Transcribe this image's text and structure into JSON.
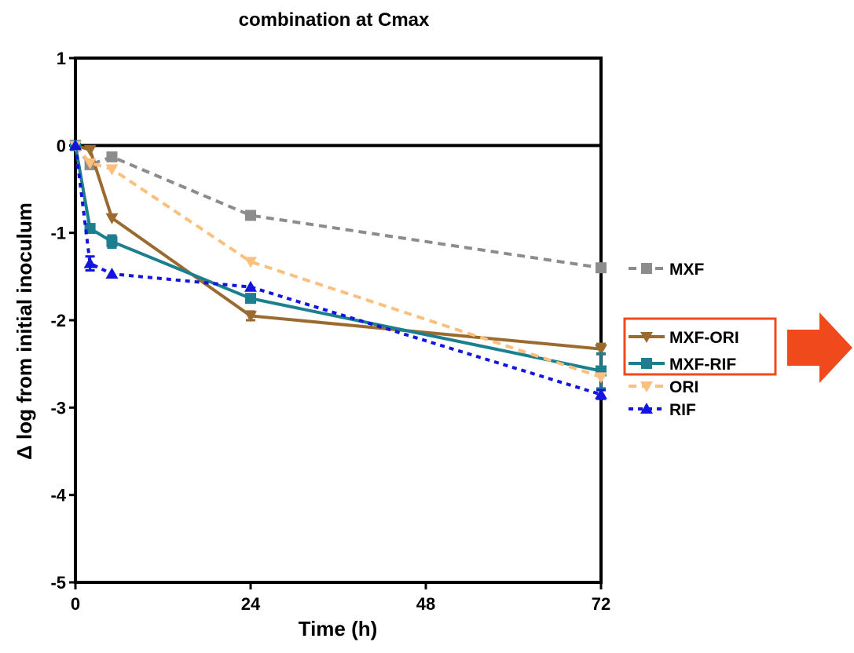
{
  "chart_data": {
    "type": "line",
    "title": "combination at Cmax",
    "xlabel": "Time (h)",
    "ylabel": "Δ log from initial inoculum",
    "xlim": [
      0,
      72
    ],
    "ylim": [
      -5,
      1
    ],
    "xticks": [
      0,
      24,
      48,
      72
    ],
    "xtick_labels": [
      "0",
      "24",
      "48",
      "72"
    ],
    "yticks": [
      1,
      0,
      -1,
      -2,
      -3,
      -4,
      -5
    ],
    "ytick_labels": [
      "1",
      "0",
      "-1",
      "-2",
      "-3",
      "-4",
      "-5"
    ],
    "reference_line_y": 0,
    "grid": false,
    "legend_position": "right",
    "series": [
      {
        "name": "MXF",
        "color": "#8c8c8c",
        "dash": "dashed",
        "marker": "square",
        "x": [
          0,
          2,
          5,
          24,
          72
        ],
        "y": [
          0,
          -0.22,
          -0.13,
          -0.8,
          -1.4
        ],
        "err": [
          0,
          0,
          0,
          0,
          0
        ]
      },
      {
        "name": "MXF-ORI",
        "color": "#9b6a2f",
        "dash": "solid",
        "marker": "triangle-down",
        "x": [
          0,
          2,
          5,
          24,
          72
        ],
        "y": [
          0,
          -0.05,
          -0.83,
          -1.95,
          -2.33
        ],
        "err": [
          0,
          0,
          0,
          0.05,
          0.06
        ]
      },
      {
        "name": "MXF-RIF",
        "color": "#1b7f8f",
        "dash": "solid",
        "marker": "square",
        "x": [
          0,
          2,
          5,
          24,
          72
        ],
        "y": [
          0,
          -0.95,
          -1.1,
          -1.75,
          -2.58
        ],
        "err": [
          0,
          0,
          0.07,
          0,
          0.2
        ]
      },
      {
        "name": "ORI",
        "color": "#fbbf7e",
        "dash": "dashed",
        "marker": "triangle-down",
        "x": [
          0,
          2,
          5,
          24,
          72
        ],
        "y": [
          0,
          -0.2,
          -0.27,
          -1.33,
          -2.65
        ],
        "err": [
          0,
          0,
          0,
          0,
          0
        ]
      },
      {
        "name": "RIF",
        "color": "#1414e0",
        "dash": "dotted",
        "marker": "triangle-up",
        "x": [
          0,
          2,
          5,
          24,
          72
        ],
        "y": [
          0,
          -1.35,
          -1.47,
          -1.62,
          -2.85
        ],
        "err": [
          0,
          0.08,
          0,
          0,
          0.05
        ]
      }
    ],
    "legend_highlight": [
      "MXF-ORI",
      "MXF-RIF"
    ],
    "highlight_color": "#f04a1c",
    "arrow_color": "#f04a1c"
  }
}
